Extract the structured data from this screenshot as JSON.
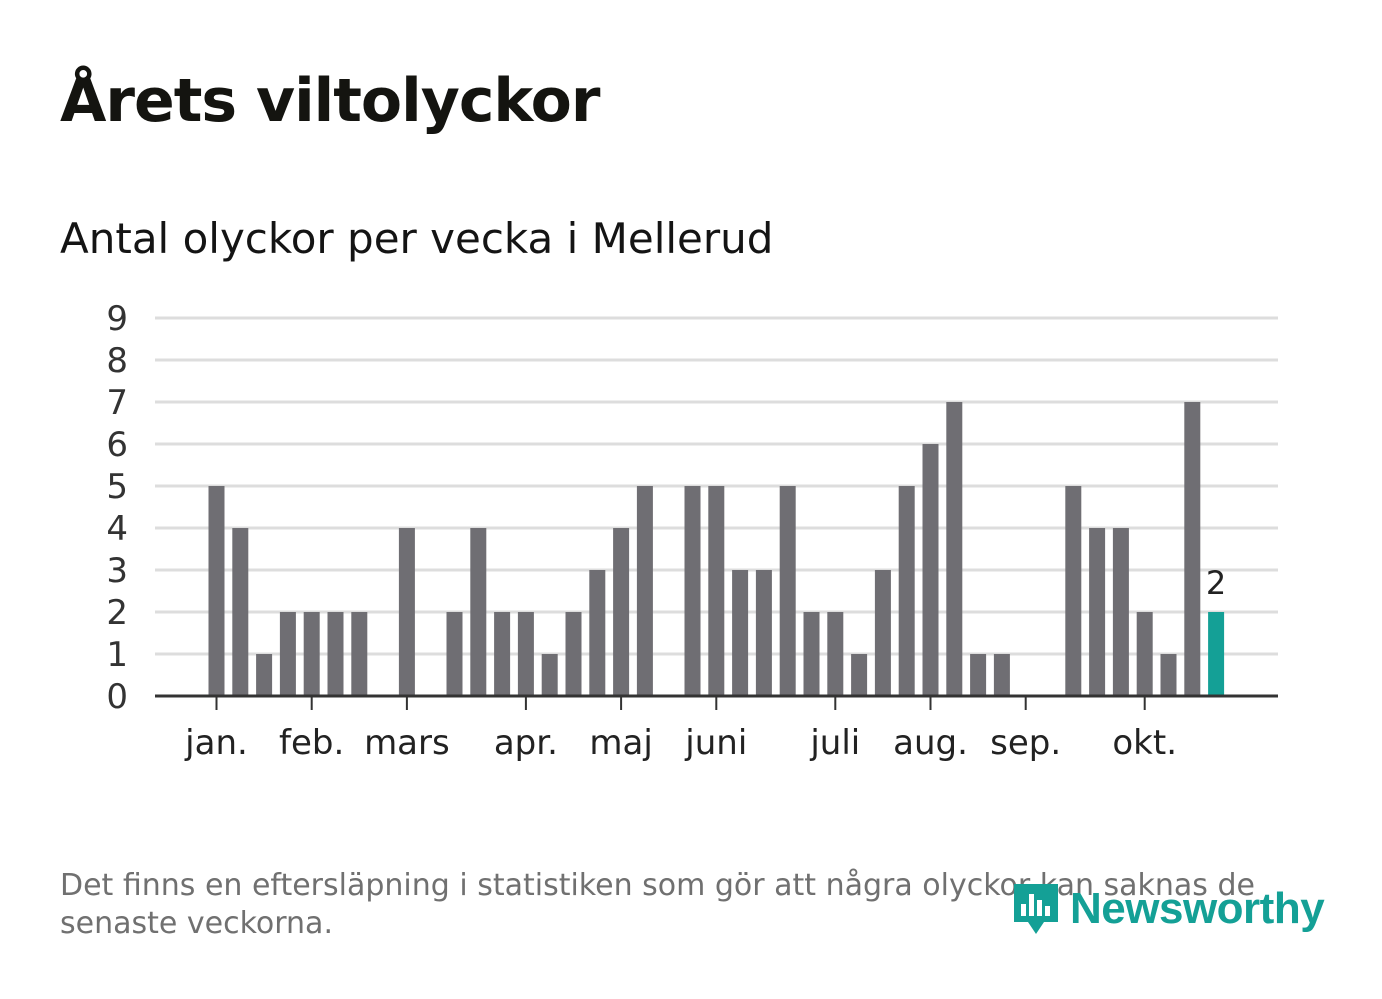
{
  "title": "Årets viltolyckor",
  "subtitle": "Antal olyckor per vecka i Mellerud",
  "footnote": "Det finns en eftersläpning i statistiken som gör att några olyckor kan saknas de senaste veckorna.",
  "brand": {
    "name": "Newsworthy",
    "color": "#14a096",
    "icon": "chart-bubble-icon"
  },
  "colors": {
    "bar": "#6f6e73",
    "highlight": "#14a096",
    "grid": "#dddddd",
    "axis": "#333333"
  },
  "chart_data": {
    "type": "bar",
    "title": "Antal olyckor per vecka i Mellerud",
    "xlabel": "",
    "ylabel": "",
    "ylim": [
      0,
      9
    ],
    "yticks": [
      0,
      1,
      2,
      3,
      4,
      5,
      6,
      7,
      8,
      9
    ],
    "grid": true,
    "weeks": [
      1,
      2,
      3,
      4,
      5,
      6,
      7,
      8,
      9,
      10,
      11,
      12,
      13,
      14,
      15,
      16,
      17,
      18,
      19,
      20,
      21,
      22,
      23,
      24,
      25,
      26,
      27,
      28,
      29,
      30,
      31,
      32,
      33,
      34,
      35,
      36,
      37,
      38,
      39,
      40,
      41,
      42,
      43,
      44,
      45
    ],
    "values": [
      0,
      0,
      5,
      4,
      1,
      2,
      2,
      2,
      2,
      0,
      4,
      0,
      2,
      4,
      2,
      2,
      1,
      2,
      3,
      4,
      5,
      0,
      5,
      5,
      3,
      3,
      5,
      2,
      2,
      1,
      3,
      5,
      6,
      7,
      1,
      1,
      0,
      0,
      5,
      4,
      4,
      2,
      1,
      7,
      2
    ],
    "highlight_index": 44,
    "highlight_label": "2",
    "month_ticks": [
      {
        "label": "jan.",
        "week": 3
      },
      {
        "label": "feb.",
        "week": 7
      },
      {
        "label": "mars",
        "week": 11
      },
      {
        "label": "apr.",
        "week": 16
      },
      {
        "label": "maj",
        "week": 20
      },
      {
        "label": "juni",
        "week": 24
      },
      {
        "label": "juli",
        "week": 29
      },
      {
        "label": "aug.",
        "week": 33
      },
      {
        "label": "sep.",
        "week": 37
      },
      {
        "label": "okt.",
        "week": 42
      }
    ]
  }
}
